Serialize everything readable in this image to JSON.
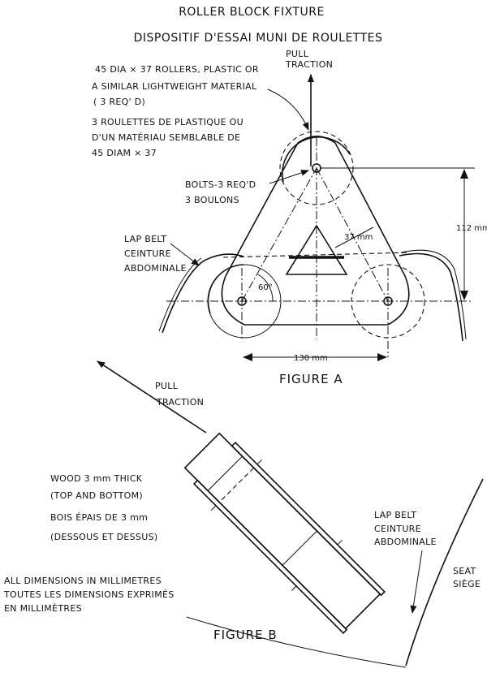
{
  "title_en": "ROLLER BLOCK FIXTURE",
  "title_fr": "DISPOSITIF D'ESSAI MUNI DE ROULETTES",
  "figure_a": {
    "caption": "FIGURE A",
    "pull_1": "PULL",
    "pull_2": "TRACTION",
    "rollers_en_1": "45 DIA × 37 ROLLERS, PLASTIC OR",
    "rollers_en_2": "A SIMILAR LIGHTWEIGHT MATERIAL",
    "rollers_en_3": "( 3 REQ' D)",
    "rollers_fr_1": "3 ROULETTES DE PLASTIQUE OU",
    "rollers_fr_2": "D'UN MATÉRIAU SEMBLABLE DE",
    "rollers_fr_3": "45 DIAM × 37",
    "bolts_1": "BOLTS-3 REQ'D",
    "bolts_2": "3 BOULONS",
    "lapbelt_1": "LAP BELT",
    "lapbelt_2": "CEINTURE",
    "lapbelt_3": "ABDOMINALE",
    "dim_37": "37 mm",
    "dim_112": "112 mm",
    "dim_130": "130 mm",
    "angle": "60°"
  },
  "figure_b": {
    "caption": "FIGURE B",
    "pull_1": "PULL",
    "pull_2": "TRACTION",
    "wood_en_1": "WOOD 3 mm THICK",
    "wood_en_2": "(TOP AND BOTTOM)",
    "wood_fr_1": "BOIS ÉPAIS DE 3 mm",
    "wood_fr_2": "(DESSOUS ET DESSUS)",
    "lapbelt_1": "LAP BELT",
    "lapbelt_2": "CEINTURE",
    "lapbelt_3": "ABDOMINALE",
    "seat_1": "SEAT",
    "seat_2": "SIÈGE"
  },
  "note_1": "ALL DIMENSIONS IN MILLIMETRES",
  "note_2": "TOUTES LES DIMENSIONS EXPRIMÉS",
  "note_3": "EN MILLIMÈTRES"
}
